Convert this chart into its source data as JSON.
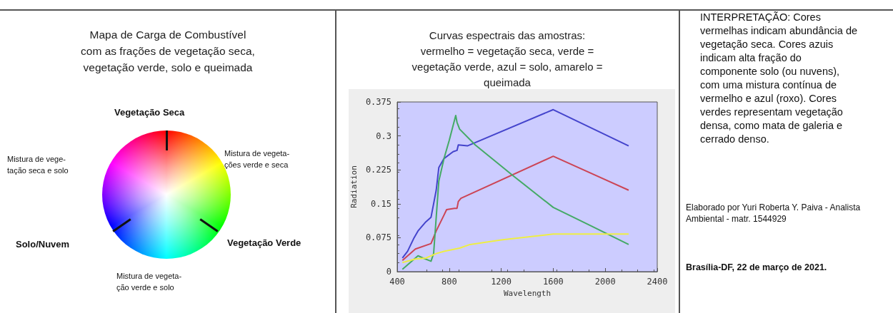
{
  "chart_data": [
    {
      "type": "other",
      "title": "Mapa de Carga de Combustível\ncom as frações de vegetação seca,\nvegetação verde, solo e queimada",
      "annotations": [
        "Vegetação Seca",
        "Mistura de vege-\ntação seca e solo",
        "Mistura de vegeta-\nções verde e seca",
        "Solo/Nuvem",
        "Vegetação Verde",
        "Mistura de vegeta-\nção verde e solo"
      ]
    },
    {
      "type": "line",
      "title": "Curvas espectrais das amostras:\nvermelho = vegetação seca, verde =\nvegetação verde, azul = solo, amarelo =\nqueimada",
      "xlabel": "Wavelength",
      "ylabel": "Radiation",
      "xlim": [
        400,
        2400
      ],
      "xticks": [
        400,
        800,
        1200,
        1600,
        2000,
        2400
      ],
      "ylim": [
        0,
        0.375
      ],
      "yticks": [
        0,
        0.075,
        0.15,
        0.225,
        0.3,
        0.375
      ],
      "grid": false,
      "series": [
        {
          "color": "#4444cc",
          "x": [
            440,
            480,
            530,
            560,
            620,
            660,
            700,
            720,
            760,
            830,
            860,
            870,
            940,
            1600,
            2180
          ],
          "values": [
            0.03,
            0.045,
            0.075,
            0.09,
            0.11,
            0.12,
            0.18,
            0.23,
            0.25,
            0.265,
            0.268,
            0.28,
            0.278,
            0.358,
            0.278
          ]
        },
        {
          "color": "#cc4455",
          "x": [
            440,
            540,
            660,
            700,
            760,
            780,
            840,
            860,
            870,
            890,
            1600,
            2180
          ],
          "values": [
            0.025,
            0.05,
            0.062,
            0.09,
            0.125,
            0.137,
            0.14,
            0.14,
            0.155,
            0.162,
            0.255,
            0.18
          ]
        },
        {
          "color": "#44aa66",
          "x": [
            440,
            560,
            600,
            660,
            680,
            720,
            760,
            800,
            850,
            860,
            880,
            1000,
            1300,
            1600,
            1900,
            2180
          ],
          "values": [
            0.005,
            0.035,
            0.03,
            0.023,
            0.04,
            0.2,
            0.25,
            0.29,
            0.345,
            0.33,
            0.315,
            0.28,
            0.21,
            0.142,
            0.1,
            0.06
          ]
        },
        {
          "color": "#eeee44",
          "x": [
            440,
            540,
            620,
            700,
            760,
            880,
            960,
            1200,
            1600,
            2180
          ],
          "values": [
            0.02,
            0.028,
            0.03,
            0.04,
            0.045,
            0.052,
            0.06,
            0.07,
            0.083,
            0.083
          ]
        }
      ]
    },
    {
      "type": "other",
      "annotations": [
        "INTERPRETAÇÃO: Cores vermelhas indicam abundância de vegetação seca. Cores azuis indicam alta fração do componente solo (ou nuvens), com uma mistura contínua de vermelho e azul (roxo). Cores verdes representam vegetação densa, como mata de galeria e cerrado denso.",
        "Elaborado por Yuri Roberta Y. Paiva - Analista Ambiental - matr. 1544929",
        "Brasília-DF, 22 de março de 2021."
      ]
    }
  ]
}
